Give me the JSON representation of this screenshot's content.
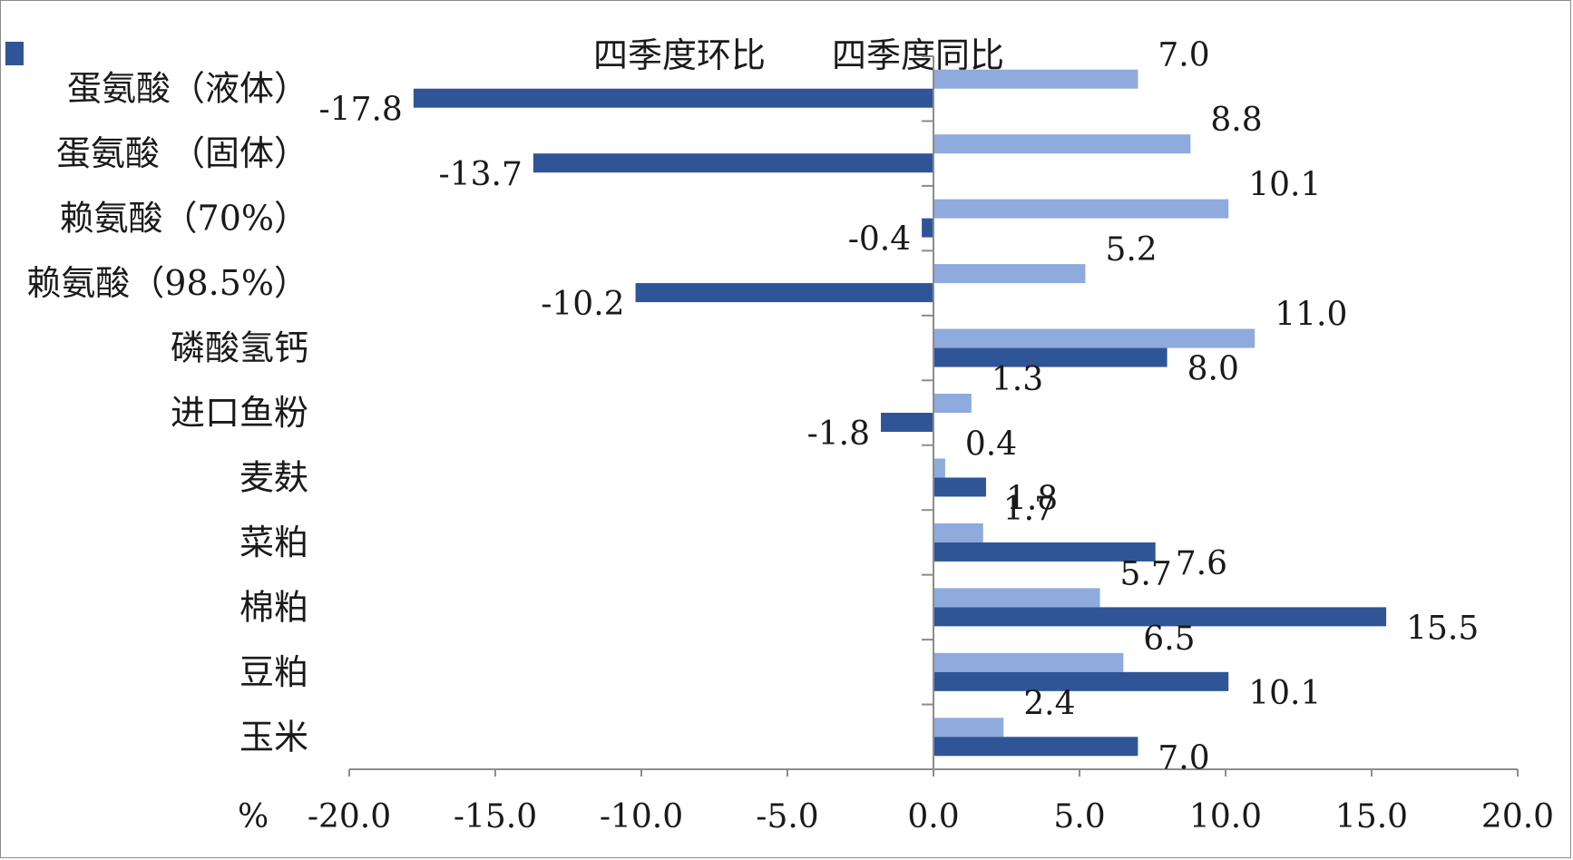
{
  "chart_data": {
    "type": "bar",
    "orientation": "horizontal",
    "categories": [
      "玉米",
      "豆粕",
      "棉粕",
      "菜粕",
      "麦麸",
      "进口鱼粉",
      "磷酸氢钙",
      "赖氨酸（98.5%）",
      "赖氨酸（70%）",
      "蛋氨酸  （固体）",
      "蛋氨酸（液体）"
    ],
    "series": [
      {
        "name": "四季度环比",
        "color": "#2f5597",
        "values": [
          7.0,
          10.1,
          15.5,
          7.6,
          1.8,
          -1.8,
          8.0,
          -10.2,
          -0.4,
          -13.7,
          -17.8
        ],
        "labels": [
          "7.0",
          "10.1",
          "15.5",
          "7.6",
          "1.8",
          "-1.8",
          "8.0",
          "-10.2",
          "-0.4",
          "-13.7",
          "-17.8"
        ]
      },
      {
        "name": "四季度同比",
        "color": "#8faadc",
        "values": [
          2.4,
          6.5,
          5.7,
          1.7,
          0.4,
          1.3,
          11.0,
          5.2,
          10.1,
          8.8,
          7.0
        ],
        "labels": [
          "2.4",
          "6.5",
          "5.7",
          "1.7",
          "0.4",
          "1.3",
          "11.0",
          "5.2",
          "10.1",
          "8.8",
          "7.0"
        ]
      }
    ],
    "xlim": [
      -20,
      20
    ],
    "xticks": [
      -20,
      -15,
      -10,
      -5,
      0,
      5,
      10,
      15,
      20
    ],
    "xtick_labels": [
      "-20.0",
      "-15.0",
      "-10.0",
      "-5.0",
      "0.0",
      "5.0",
      "10.0",
      "15.0",
      "20.0"
    ],
    "xlabel": "%",
    "legend_position": "top",
    "grid": false
  }
}
